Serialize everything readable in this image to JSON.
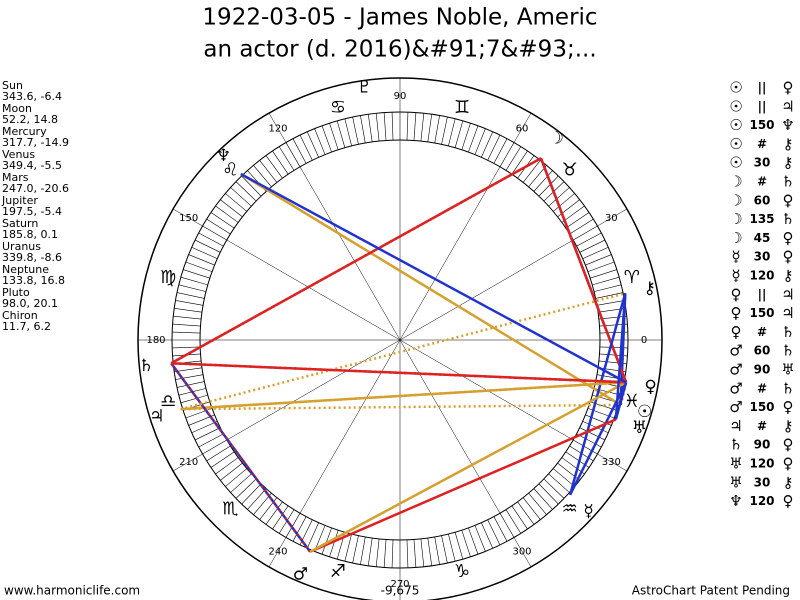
{
  "header": {
    "title_line1": "1922-03-05 - James Noble, Americ",
    "title_line2": "an actor (d. 2016)&#91;7&#93;..."
  },
  "planets": [
    {
      "name": "Sun",
      "coords": "343.6, -6.4",
      "glyph": "☉"
    },
    {
      "name": "Moon",
      "coords": "52.2, 14.8",
      "glyph": "☽"
    },
    {
      "name": "Mercury",
      "coords": "317.7, -14.9",
      "glyph": "☿"
    },
    {
      "name": "Venus",
      "coords": "349.4, -5.5",
      "glyph": "♀"
    },
    {
      "name": "Mars",
      "coords": "247.0, -20.6",
      "glyph": "♂"
    },
    {
      "name": "Jupiter",
      "coords": "197.5, -5.4",
      "glyph": "♃"
    },
    {
      "name": "Saturn",
      "coords": "185.8, 0.1",
      "glyph": "♄"
    },
    {
      "name": "Uranus",
      "coords": "339.8, -8.6",
      "glyph": "♅"
    },
    {
      "name": "Neptune",
      "coords": "133.8, 16.8",
      "glyph": "♆"
    },
    {
      "name": "Pluto",
      "coords": "98.0, 20.1",
      "glyph": "♇"
    },
    {
      "name": "Chiron",
      "coords": "11.7, 6.2",
      "glyph": "⚷"
    }
  ],
  "signs": [
    "♈",
    "♉",
    "♊",
    "♋",
    "♌",
    "♍",
    "♎",
    "♏",
    "♐",
    "♑",
    "♒",
    "♓"
  ],
  "degree_labels": [
    0,
    30,
    60,
    90,
    120,
    150,
    180,
    210,
    240,
    270,
    300,
    330
  ],
  "aspects": [
    {
      "p1": "☉",
      "aspect": "||",
      "p2": "♀",
      "color": "#cc2222",
      "dashed": true
    },
    {
      "p1": "☉",
      "aspect": "||",
      "p2": "♃",
      "color": "#d4a030",
      "dashed": true
    },
    {
      "p1": "☉",
      "aspect": "150",
      "p2": "♆",
      "color": "#d4a030"
    },
    {
      "p1": "☉",
      "aspect": "#",
      "p2": "⚷",
      "color": "#cc2222",
      "dashed": true
    },
    {
      "p1": "☉",
      "aspect": "30",
      "p2": "⚷",
      "color": "#2233cc"
    },
    {
      "p1": "☽",
      "aspect": "#",
      "p2": "♄",
      "color": "#cc2222",
      "dashed": true
    },
    {
      "p1": "☽",
      "aspect": "60",
      "p2": "♀",
      "color": "#2233cc"
    },
    {
      "p1": "☽",
      "aspect": "135",
      "p2": "♄",
      "color": "#dd2222"
    },
    {
      "p1": "☽",
      "aspect": "45",
      "p2": "♀",
      "color": "#dd2222"
    },
    {
      "p1": "☿",
      "aspect": "30",
      "p2": "♀",
      "color": "#2233cc"
    },
    {
      "p1": "☿",
      "aspect": "120",
      "p2": "⚷",
      "color": "#2233cc"
    },
    {
      "p1": "♀",
      "aspect": "||",
      "p2": "♃",
      "color": "#d4a030",
      "dashed": true
    },
    {
      "p1": "♀",
      "aspect": "150",
      "p2": "♃",
      "color": "#d4a030"
    },
    {
      "p1": "♀",
      "aspect": "#",
      "p2": "♄",
      "color": "#cc2222",
      "dashed": true
    },
    {
      "p1": "♂",
      "aspect": "60",
      "p2": "♄",
      "color": "#2233cc"
    },
    {
      "p1": "♂",
      "aspect": "90",
      "p2": "♅",
      "color": "#dd2222"
    },
    {
      "p1": "♂",
      "aspect": "#",
      "p2": "♄",
      "color": "#cc2222",
      "dashed": true
    },
    {
      "p1": "♂",
      "aspect": "150",
      "p2": "♀",
      "color": "#d4a030"
    },
    {
      "p1": "♃",
      "aspect": "#",
      "p2": "⚷",
      "color": "#d4a030",
      "dashed": true
    },
    {
      "p1": "♄",
      "aspect": "90",
      "p2": "♀",
      "color": "#dd2222"
    },
    {
      "p1": "♅",
      "aspect": "120",
      "p2": "♀",
      "color": "#2233cc"
    },
    {
      "p1": "♅",
      "aspect": "30",
      "p2": "⚷",
      "color": "#2233cc"
    },
    {
      "p1": "♆",
      "aspect": "120",
      "p2": "♀",
      "color": "#2233cc"
    }
  ],
  "footer": {
    "left": "www.harmoniclife.com",
    "center": "-9,675",
    "right": "AstroChart Patent Pending"
  }
}
